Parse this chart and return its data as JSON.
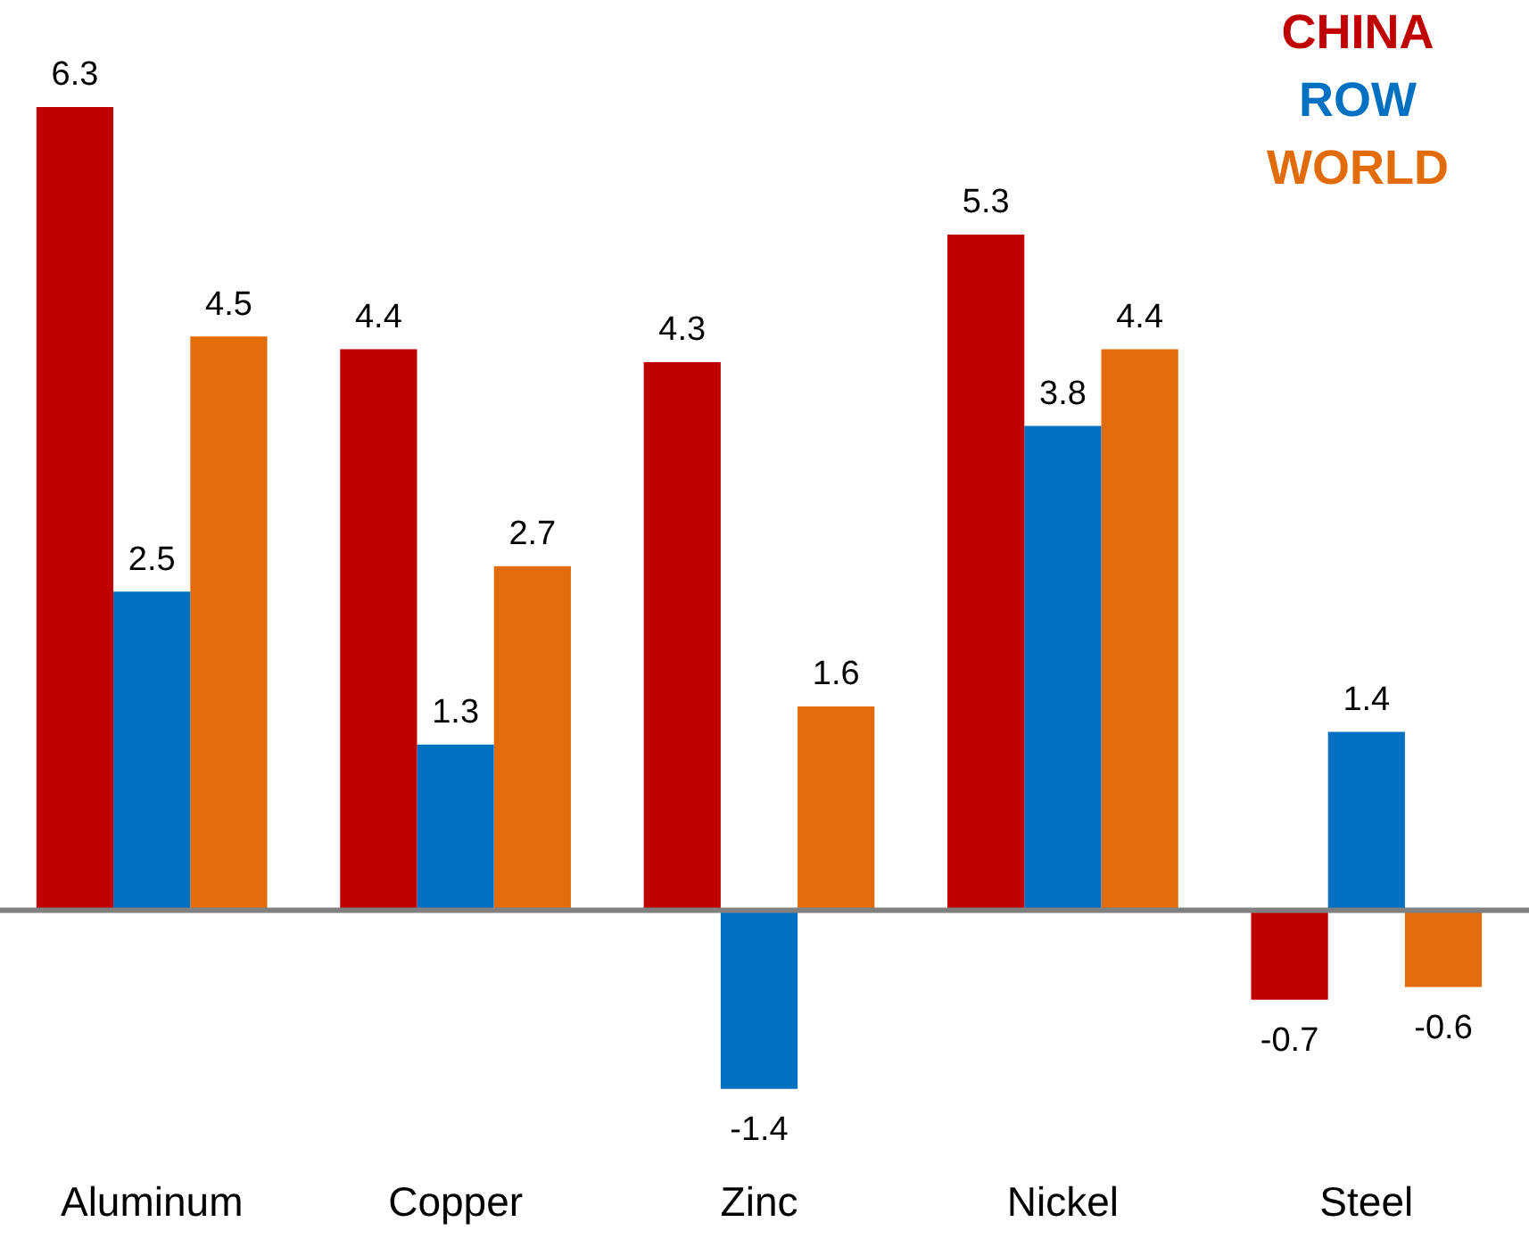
{
  "chart_data": {
    "type": "bar",
    "categories": [
      "Aluminum",
      "Copper",
      "Zinc",
      "Nickel",
      "Steel"
    ],
    "series": [
      {
        "name": "CHINA",
        "color": "#c00000",
        "values": [
          6.3,
          4.4,
          4.3,
          5.3,
          -0.7
        ]
      },
      {
        "name": "ROW",
        "color": "#0070c0",
        "values": [
          2.5,
          1.3,
          -1.4,
          3.8,
          1.4
        ]
      },
      {
        "name": "WORLD",
        "color": "#e36c0a",
        "values": [
          4.5,
          2.7,
          1.6,
          4.4,
          -0.6
        ]
      }
    ],
    "data_labels": true,
    "legend": "top right",
    "grid": false
  }
}
